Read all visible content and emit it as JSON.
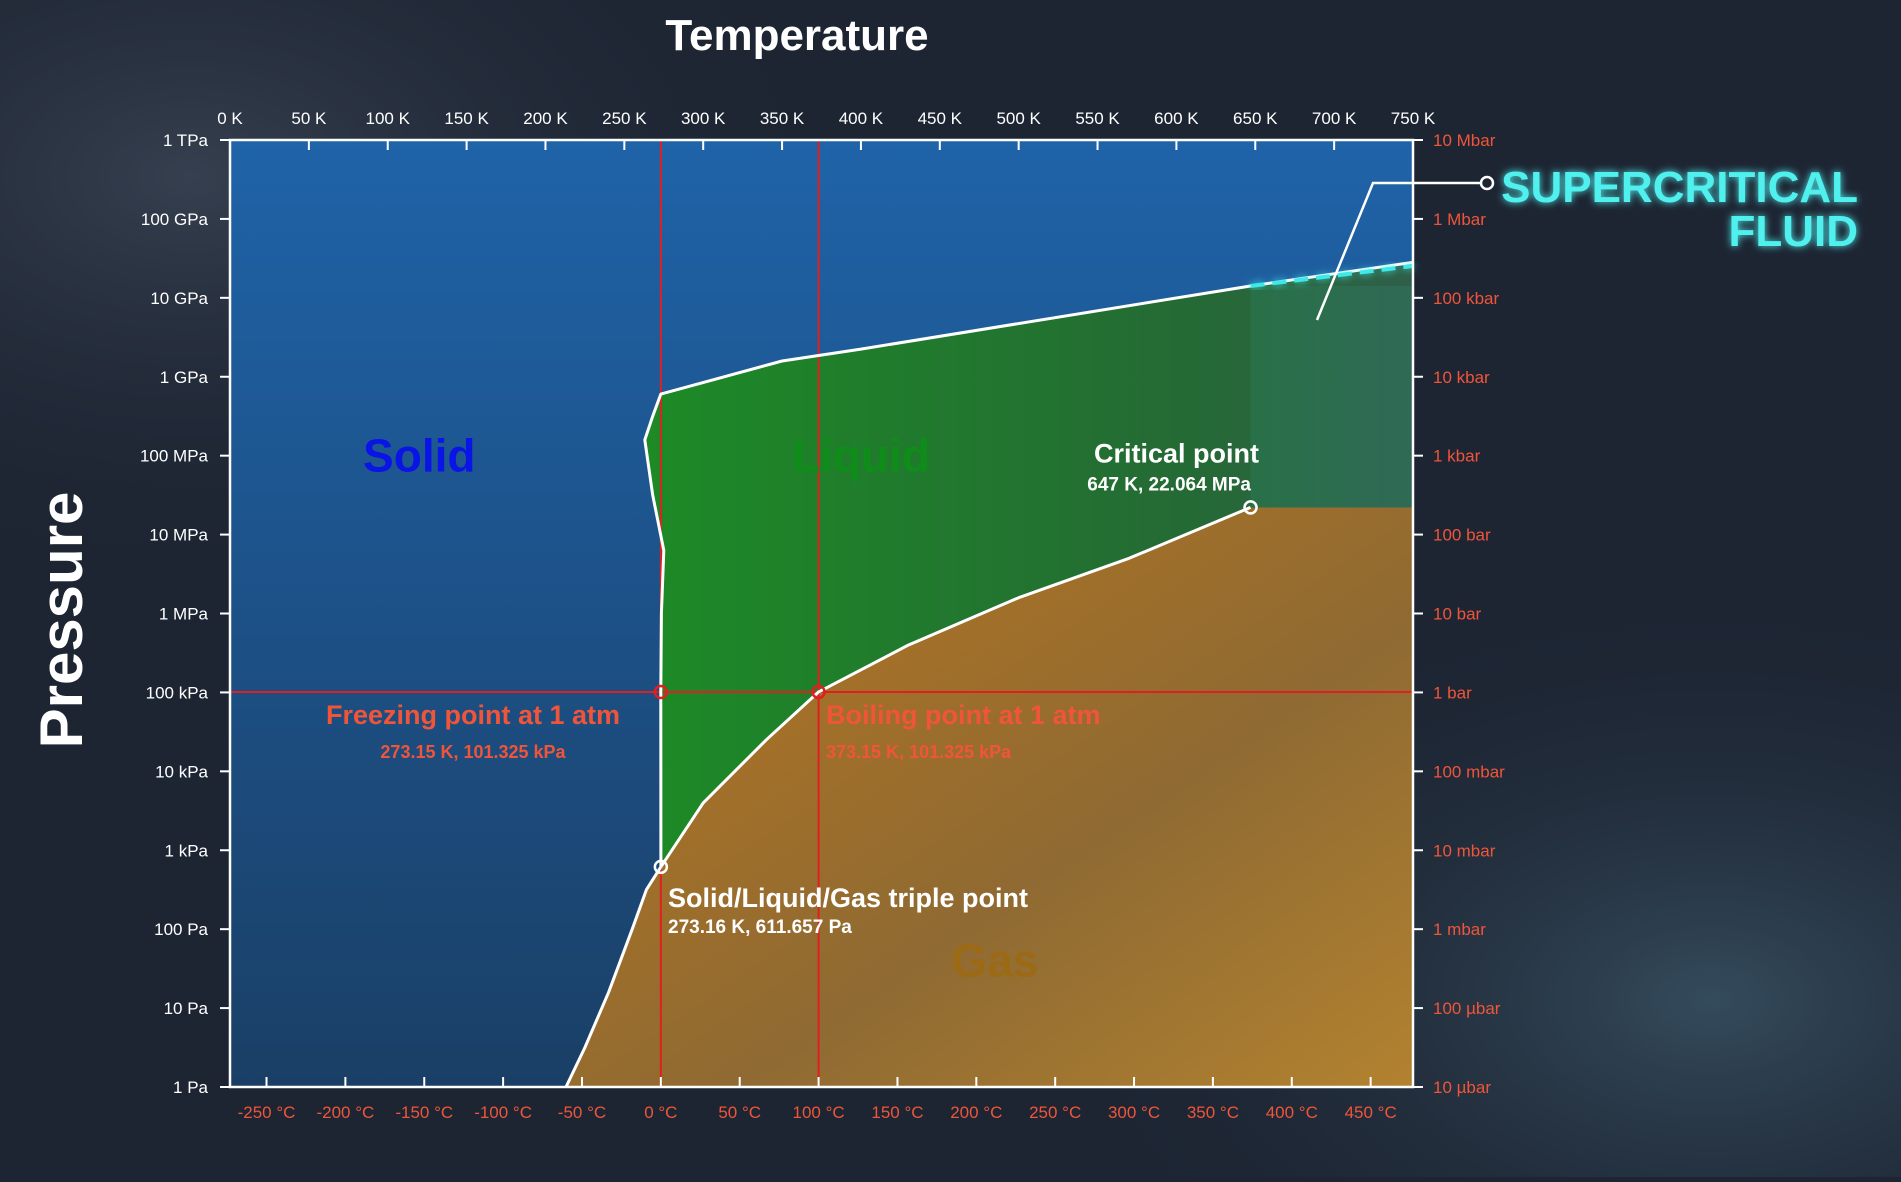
{
  "chart_data": {
    "type": "phase-diagram",
    "title": "Temperature",
    "ylabel": "Pressure",
    "x_scale": "linear",
    "y_scale": "log",
    "xlim_K": [
      0,
      750
    ],
    "ylim_Pa": [
      1,
      1000000000000
    ],
    "x_ticks_top": [
      {
        "value": 0,
        "label": "0 K"
      },
      {
        "value": 50,
        "label": "50 K"
      },
      {
        "value": 100,
        "label": "100 K"
      },
      {
        "value": 150,
        "label": "150 K"
      },
      {
        "value": 200,
        "label": "200 K"
      },
      {
        "value": 250,
        "label": "250 K"
      },
      {
        "value": 300,
        "label": "300 K"
      },
      {
        "value": 350,
        "label": "350 K"
      },
      {
        "value": 400,
        "label": "400 K"
      },
      {
        "value": 450,
        "label": "450 K"
      },
      {
        "value": 500,
        "label": "500 K"
      },
      {
        "value": 550,
        "label": "550 K"
      },
      {
        "value": 600,
        "label": "600 K"
      },
      {
        "value": 650,
        "label": "650 K"
      },
      {
        "value": 700,
        "label": "700 K"
      },
      {
        "value": 750,
        "label": "750 K"
      }
    ],
    "x_ticks_bottom": [
      {
        "value": 23.15,
        "label": "-250 °C"
      },
      {
        "value": 73.15,
        "label": "-200 °C"
      },
      {
        "value": 123.15,
        "label": "-150 °C"
      },
      {
        "value": 173.15,
        "label": "-100 °C"
      },
      {
        "value": 223.15,
        "label": "-50 °C"
      },
      {
        "value": 273.15,
        "label": "0 °C"
      },
      {
        "value": 323.15,
        "label": "50 °C"
      },
      {
        "value": 373.15,
        "label": "100 °C"
      },
      {
        "value": 423.15,
        "label": "150 °C"
      },
      {
        "value": 473.15,
        "label": "200 °C"
      },
      {
        "value": 523.15,
        "label": "250 °C"
      },
      {
        "value": 573.15,
        "label": "300 °C"
      },
      {
        "value": 623.15,
        "label": "350 °C"
      },
      {
        "value": 673.15,
        "label": "400 °C"
      },
      {
        "value": 723.15,
        "label": "450 °C"
      }
    ],
    "y_ticks_left": [
      {
        "exp": 12,
        "label": "1 TPa"
      },
      {
        "exp": 11,
        "label": "100 GPa"
      },
      {
        "exp": 10,
        "label": "10 GPa"
      },
      {
        "exp": 9,
        "label": "1 GPa"
      },
      {
        "exp": 8,
        "label": "100 MPa"
      },
      {
        "exp": 7,
        "label": "10 MPa"
      },
      {
        "exp": 6,
        "label": "1 MPa"
      },
      {
        "exp": 5,
        "label": "100 kPa"
      },
      {
        "exp": 4,
        "label": "10 kPa"
      },
      {
        "exp": 3,
        "label": "1 kPa"
      },
      {
        "exp": 2,
        "label": "100 Pa"
      },
      {
        "exp": 1,
        "label": "10 Pa"
      },
      {
        "exp": 0,
        "label": "1 Pa"
      }
    ],
    "y_ticks_right": [
      {
        "exp": 12,
        "label": "10 Mbar"
      },
      {
        "exp": 11,
        "label": "1 Mbar"
      },
      {
        "exp": 10,
        "label": "100 kbar"
      },
      {
        "exp": 9,
        "label": "10 kbar"
      },
      {
        "exp": 8,
        "label": "1 kbar"
      },
      {
        "exp": 7,
        "label": "100 bar"
      },
      {
        "exp": 6,
        "label": "10 bar"
      },
      {
        "exp": 5,
        "label": "1 bar"
      },
      {
        "exp": 4,
        "label": "100 mbar"
      },
      {
        "exp": 3,
        "label": "10 mbar"
      },
      {
        "exp": 2,
        "label": "1 mbar"
      },
      {
        "exp": 1,
        "label": "100 µbar"
      },
      {
        "exp": 0,
        "label": "10 µbar"
      }
    ],
    "boundaries": {
      "sublimation": [
        [
          213,
          0
        ],
        [
          225,
          0.5
        ],
        [
          240,
          1.2
        ],
        [
          255,
          2.0
        ],
        [
          264,
          2.5
        ],
        [
          273.16,
          2.79
        ]
      ],
      "vaporization": [
        [
          273.16,
          2.79
        ],
        [
          300,
          3.6
        ],
        [
          340,
          4.4
        ],
        [
          373.15,
          5.006
        ],
        [
          430,
          5.6
        ],
        [
          500,
          6.2
        ],
        [
          570,
          6.7
        ],
        [
          647,
          7.344
        ]
      ],
      "melting": [
        [
          273.16,
          2.79
        ],
        [
          273.15,
          5.006
        ],
        [
          273.5,
          6.0
        ],
        [
          275,
          6.8
        ],
        [
          268,
          7.5
        ],
        [
          263,
          8.2
        ],
        [
          268,
          8.5
        ],
        [
          273.15,
          8.78
        ],
        [
          350,
          9.2
        ],
        [
          400,
          9.35
        ],
        [
          647,
          10.15
        ],
        [
          750,
          10.45
        ]
      ]
    },
    "regions": [
      {
        "name": "Solid",
        "color": "#0a14e6"
      },
      {
        "name": "Liquid",
        "color": "#0f8c1a"
      },
      {
        "name": "Gas",
        "color": "#9c6a14"
      }
    ],
    "reference_lines": {
      "color": "#e02020",
      "freezing_T": 273.15,
      "boiling_T": 373.15,
      "atm_exp": 5.006
    },
    "supercritical_region": {
      "T_min": 647,
      "exp_min": 7.344,
      "color": "#3ee8e8"
    },
    "annotations": [
      {
        "id": "freezing",
        "title": "Freezing point at 1 atm",
        "subtitle": "273.15 K, 101.325 kPa",
        "T": 273.15,
        "exp": 5.006,
        "color": "#f0553a"
      },
      {
        "id": "boiling",
        "title": "Boiling point at 1 atm",
        "subtitle": "373.15 K, 101.325 kPa",
        "T": 373.15,
        "exp": 5.006,
        "color": "#f0553a"
      },
      {
        "id": "triple",
        "title": "Solid/Liquid/Gas triple point",
        "subtitle": "273.16 K, 611.657 Pa",
        "T": 273.16,
        "exp": 2.79,
        "color": "#ffffff"
      },
      {
        "id": "critical",
        "title": "Critical point",
        "subtitle": "647 K, 22.064 MPa",
        "T": 647,
        "exp": 7.344,
        "color": "#ffffff"
      }
    ],
    "callout": {
      "lines": [
        "SUPERCRITICAL",
        "FLUID"
      ],
      "color": "#4ff0ee"
    },
    "colors": {
      "background": "#1d2533",
      "solid_fill": "#1c5796",
      "liquid_fill": "#1e7d28",
      "gas_fill": "#b07a2a",
      "axis_text": "#ffffff",
      "celsius_text": "#f0553a",
      "boundary": "#ffffff"
    }
  }
}
